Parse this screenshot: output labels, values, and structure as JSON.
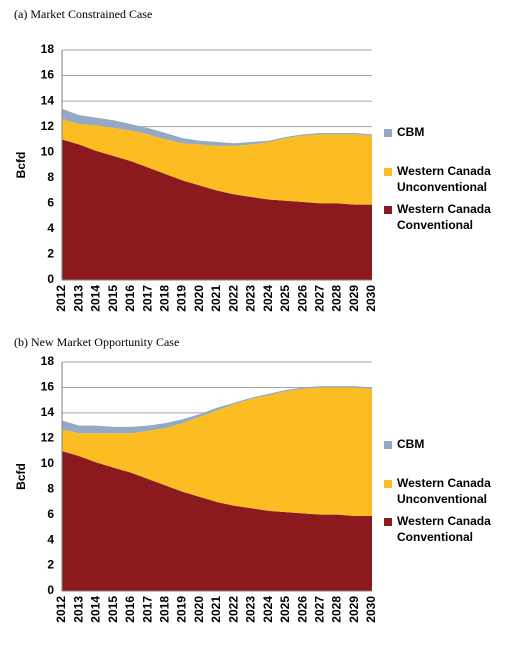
{
  "chart_data": [
    {
      "type": "area",
      "stacked": true,
      "title": "(a)  Market Constrained Case",
      "ylabel": "Bcfd",
      "categories": [
        "2012",
        "2013",
        "2014",
        "2015",
        "2016",
        "2017",
        "2018",
        "2019",
        "2020",
        "2021",
        "2022",
        "2023",
        "2024",
        "2025",
        "2026",
        "2027",
        "2028",
        "2029",
        "2030"
      ],
      "ylim": [
        0,
        18
      ],
      "yticks": [
        0,
        2,
        4,
        6,
        8,
        10,
        12,
        14,
        16,
        18
      ],
      "grid": true,
      "series": [
        {
          "name": "Western Canada Conventional",
          "color": "#8b1a1f",
          "values": [
            11.0,
            10.6,
            10.1,
            9.7,
            9.3,
            8.8,
            8.3,
            7.8,
            7.4,
            7.0,
            6.7,
            6.5,
            6.3,
            6.2,
            6.1,
            6.0,
            6.0,
            5.9,
            5.9
          ]
        },
        {
          "name": "Western Canada Unconventional",
          "color": "#fbbd22",
          "values": [
            1.6,
            1.6,
            2.0,
            2.2,
            2.4,
            2.6,
            2.7,
            2.9,
            3.2,
            3.5,
            3.8,
            4.1,
            4.5,
            4.9,
            5.2,
            5.4,
            5.4,
            5.5,
            5.4
          ]
        },
        {
          "name": "CBM",
          "color": "#93a9c4",
          "values": [
            0.8,
            0.7,
            0.6,
            0.6,
            0.5,
            0.5,
            0.5,
            0.4,
            0.3,
            0.3,
            0.2,
            0.2,
            0.1,
            0.1,
            0.1,
            0.1,
            0.1,
            0.1,
            0.1
          ]
        }
      ]
    },
    {
      "type": "area",
      "stacked": true,
      "title": "(b)  New Market Opportunity Case",
      "ylabel": "Bcfd",
      "categories": [
        "2012",
        "2013",
        "2014",
        "2015",
        "2016",
        "2017",
        "2018",
        "2019",
        "2020",
        "2021",
        "2022",
        "2023",
        "2024",
        "2025",
        "2026",
        "2027",
        "2028",
        "2029",
        "2030"
      ],
      "ylim": [
        0,
        18
      ],
      "yticks": [
        0,
        2,
        4,
        6,
        8,
        10,
        12,
        14,
        16,
        18
      ],
      "grid": true,
      "series": [
        {
          "name": "Western Canada Conventional",
          "color": "#8b1a1f",
          "values": [
            11.0,
            10.6,
            10.1,
            9.7,
            9.3,
            8.8,
            8.3,
            7.8,
            7.4,
            7.0,
            6.7,
            6.5,
            6.3,
            6.2,
            6.1,
            6.0,
            6.0,
            5.9,
            5.9
          ]
        },
        {
          "name": "Western Canada Unconventional",
          "color": "#fbbd22",
          "values": [
            1.7,
            1.8,
            2.3,
            2.7,
            3.1,
            3.8,
            4.5,
            5.4,
            6.3,
            7.2,
            8.0,
            8.6,
            9.1,
            9.5,
            9.8,
            10.0,
            10.0,
            10.1,
            10.0
          ]
        },
        {
          "name": "CBM",
          "color": "#93a9c4",
          "values": [
            0.7,
            0.6,
            0.6,
            0.5,
            0.5,
            0.4,
            0.4,
            0.3,
            0.2,
            0.2,
            0.1,
            0.1,
            0.1,
            0.1,
            0.1,
            0.1,
            0.1,
            0.1,
            0.1
          ]
        }
      ]
    }
  ]
}
